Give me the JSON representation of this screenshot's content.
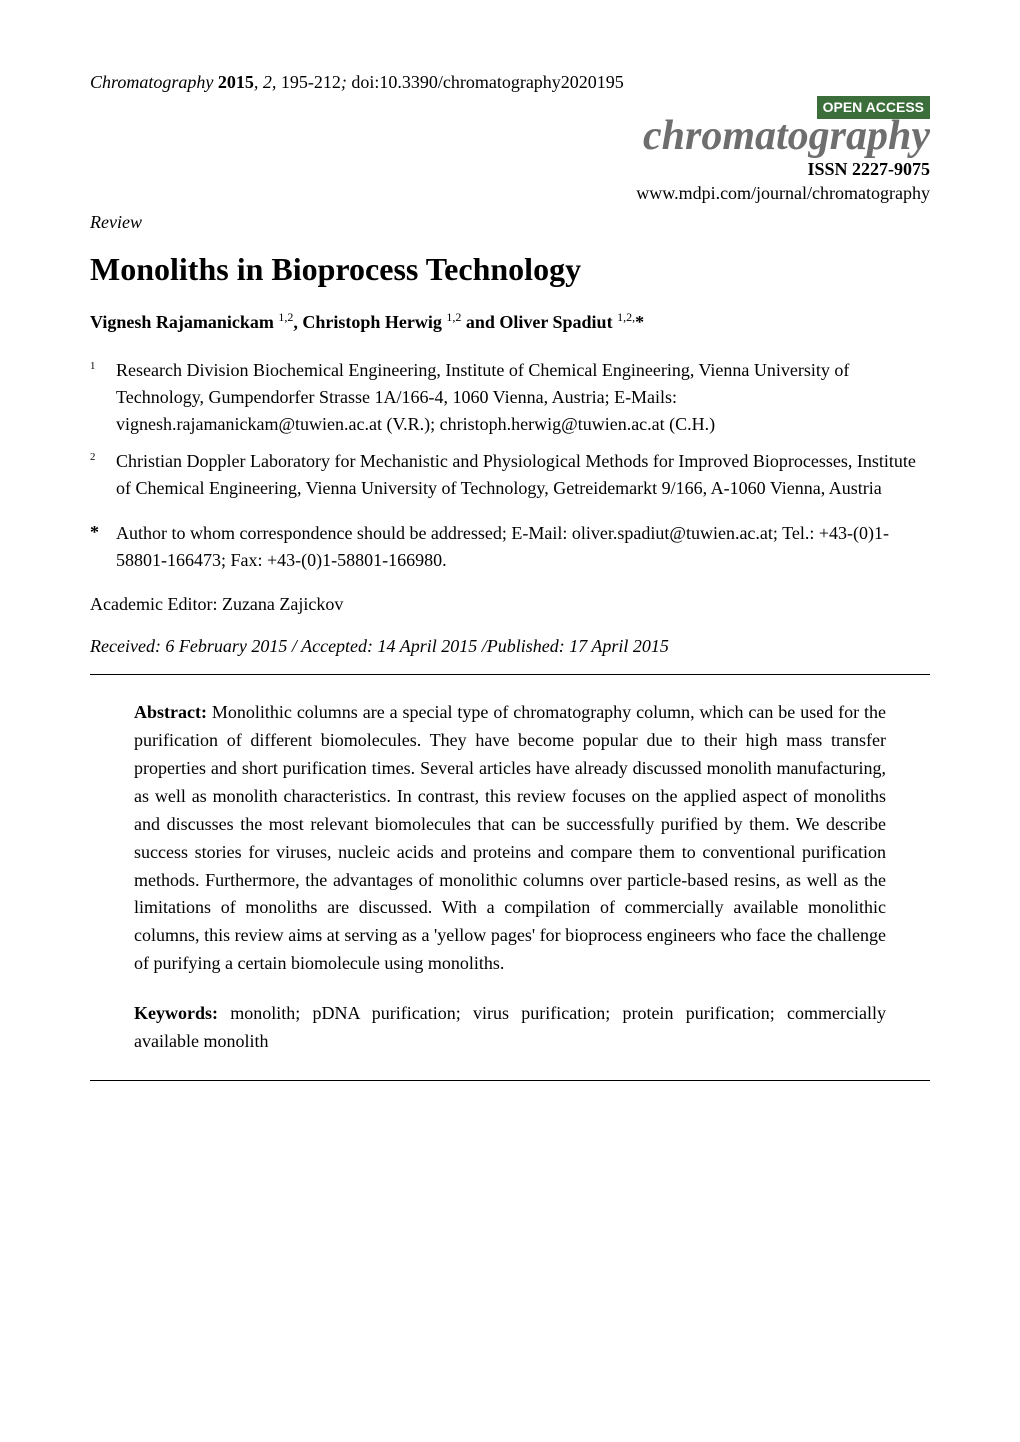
{
  "header": {
    "journal_name": "Chromatography",
    "year": "2015",
    "volume": "2",
    "pages": "195-212",
    "doi": "doi:10.3390/chromatography2020195"
  },
  "branding": {
    "open_access_label": "OPEN ACCESS",
    "open_access_bg": "#3b6e3b",
    "open_access_fg": "#ffffff",
    "journal_logo_text": "chromatography",
    "journal_logo_color": "#6e6e6e",
    "issn": "ISSN 2227-9075",
    "url": "www.mdpi.com/journal/chromatography"
  },
  "doc_type": "Review",
  "title": "Monoliths in Bioprocess Technology",
  "authors_line": "Vignesh Rajamanickam 1,2, Christoph Herwig 1,2 and Oliver Spadiut 1,2,*",
  "affiliations": [
    {
      "marker": "1",
      "text": "Research Division Biochemical Engineering, Institute of Chemical Engineering, Vienna University of Technology, Gumpendorfer Strasse 1A/166-4, 1060 Vienna, Austria; E-Mails: vignesh.rajamanickam@tuwien.ac.at (V.R.); christoph.herwig@tuwien.ac.at (C.H.)"
    },
    {
      "marker": "2",
      "text": "Christian Doppler Laboratory for Mechanistic and Physiological Methods for Improved Bioprocesses, Institute of Chemical Engineering, Vienna University of Technology, Getreidemarkt 9/166, A-1060 Vienna, Austria"
    }
  ],
  "correspondence": {
    "marker": "*",
    "text": "Author to whom correspondence should be addressed; E-Mail: oliver.spadiut@tuwien.ac.at; Tel.: +43-(0)1-58801-166473; Fax: +43-(0)1-58801-166980."
  },
  "editor_line": "Academic Editor: Zuzana Zajickov",
  "dates_line": "Received: 6 February 2015 / Accepted: 14 April 2015 /Published: 17 April 2015",
  "abstract": {
    "label": "Abstract:",
    "text": "Monolithic columns are a special type of chromatography column, which can be used for the purification of different biomolecules. They have become popular due to their high mass transfer properties and short purification times. Several articles have already discussed monolith manufacturing, as well as monolith characteristics. In contrast, this review focuses on the applied aspect of monoliths and discusses the most relevant biomolecules that can be successfully purified by them. We describe success stories for viruses, nucleic acids and proteins and compare them to conventional purification methods. Furthermore, the advantages of monolithic columns over particle-based resins, as well as the limitations of monoliths are discussed. With a compilation of commercially available monolithic columns, this review aims at serving as a 'yellow pages' for bioprocess engineers who face the challenge of purifying a certain biomolecule using monoliths."
  },
  "keywords": {
    "label": "Keywords:",
    "text": "monolith; pDNA purification; virus purification; protein purification; commercially available monolith"
  },
  "typography": {
    "body_font": "Times New Roman",
    "title_fontsize_pt": 24,
    "body_fontsize_pt": 13,
    "logo_fontsize_pt": 32,
    "background_color": "#ffffff",
    "text_color": "#000000",
    "rule_color": "#000000"
  }
}
